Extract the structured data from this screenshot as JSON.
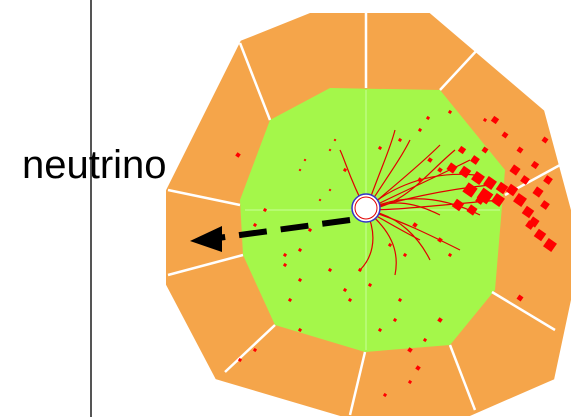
{
  "labels": {
    "neutrino": "neutrino"
  },
  "colors": {
    "background": "#ffffff",
    "divider": "#555555",
    "outer_detector": "#f5a54a",
    "inner_detector": "#a4f74a",
    "sector_lines": "#ffffff",
    "hits": "#ff0000",
    "tracks": "#e00000",
    "beam_pipe": "#3333cc",
    "missing_energy_arrow": "#000000",
    "label_text": "#000000"
  },
  "icons": {
    "missing_energy_arrow": "dashed-arrow-left"
  }
}
